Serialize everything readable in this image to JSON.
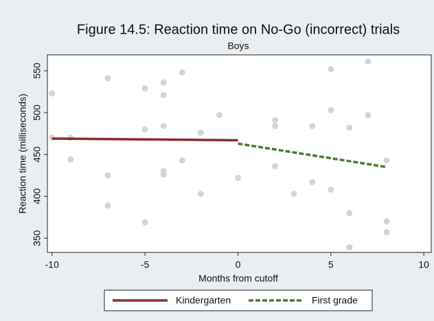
{
  "chart_data": {
    "type": "scatter",
    "title": "Figure 14.5: Reaction time on No-Go (incorrect) trials",
    "subtitle": "Boys",
    "x_label": "Months from cutoff",
    "y_label": "Reaction time (milliseconds)",
    "xlim": [
      -10.25,
      10.4
    ],
    "ylim": [
      333,
      569
    ],
    "xticks": [
      -10,
      -5,
      0,
      5,
      10
    ],
    "yticks": [
      350,
      400,
      450,
      500,
      550
    ],
    "points": {
      "color": "#d4d4d4",
      "x": [
        -10,
        -10,
        -9,
        -9,
        -7,
        -7,
        -7,
        -5,
        -5,
        -5,
        -4,
        -4,
        -4,
        -4,
        -4,
        -3,
        -3,
        -2,
        -2,
        -1,
        0,
        2,
        2,
        2,
        3,
        4,
        4,
        5,
        5,
        5,
        6,
        6,
        6,
        7,
        7,
        8,
        8,
        8
      ],
      "y": [
        523,
        470,
        470,
        444,
        541,
        425,
        389,
        529,
        480,
        369,
        536,
        521,
        484,
        430,
        426,
        548,
        443,
        476,
        403,
        497,
        422,
        491,
        484,
        436,
        403,
        484,
        417,
        552,
        503,
        408,
        482,
        380,
        339,
        561,
        497,
        443,
        370,
        357
      ]
    },
    "series": [
      {
        "name": "Kindergarten",
        "color": "#8b2a2f",
        "dashed": false,
        "x": [
          -10,
          0
        ],
        "values": [
          469,
          467
        ]
      },
      {
        "name": "First grade",
        "color": "#4f7a2c",
        "dashed": true,
        "x": [
          0,
          8
        ],
        "values": [
          463,
          435
        ]
      }
    ]
  }
}
